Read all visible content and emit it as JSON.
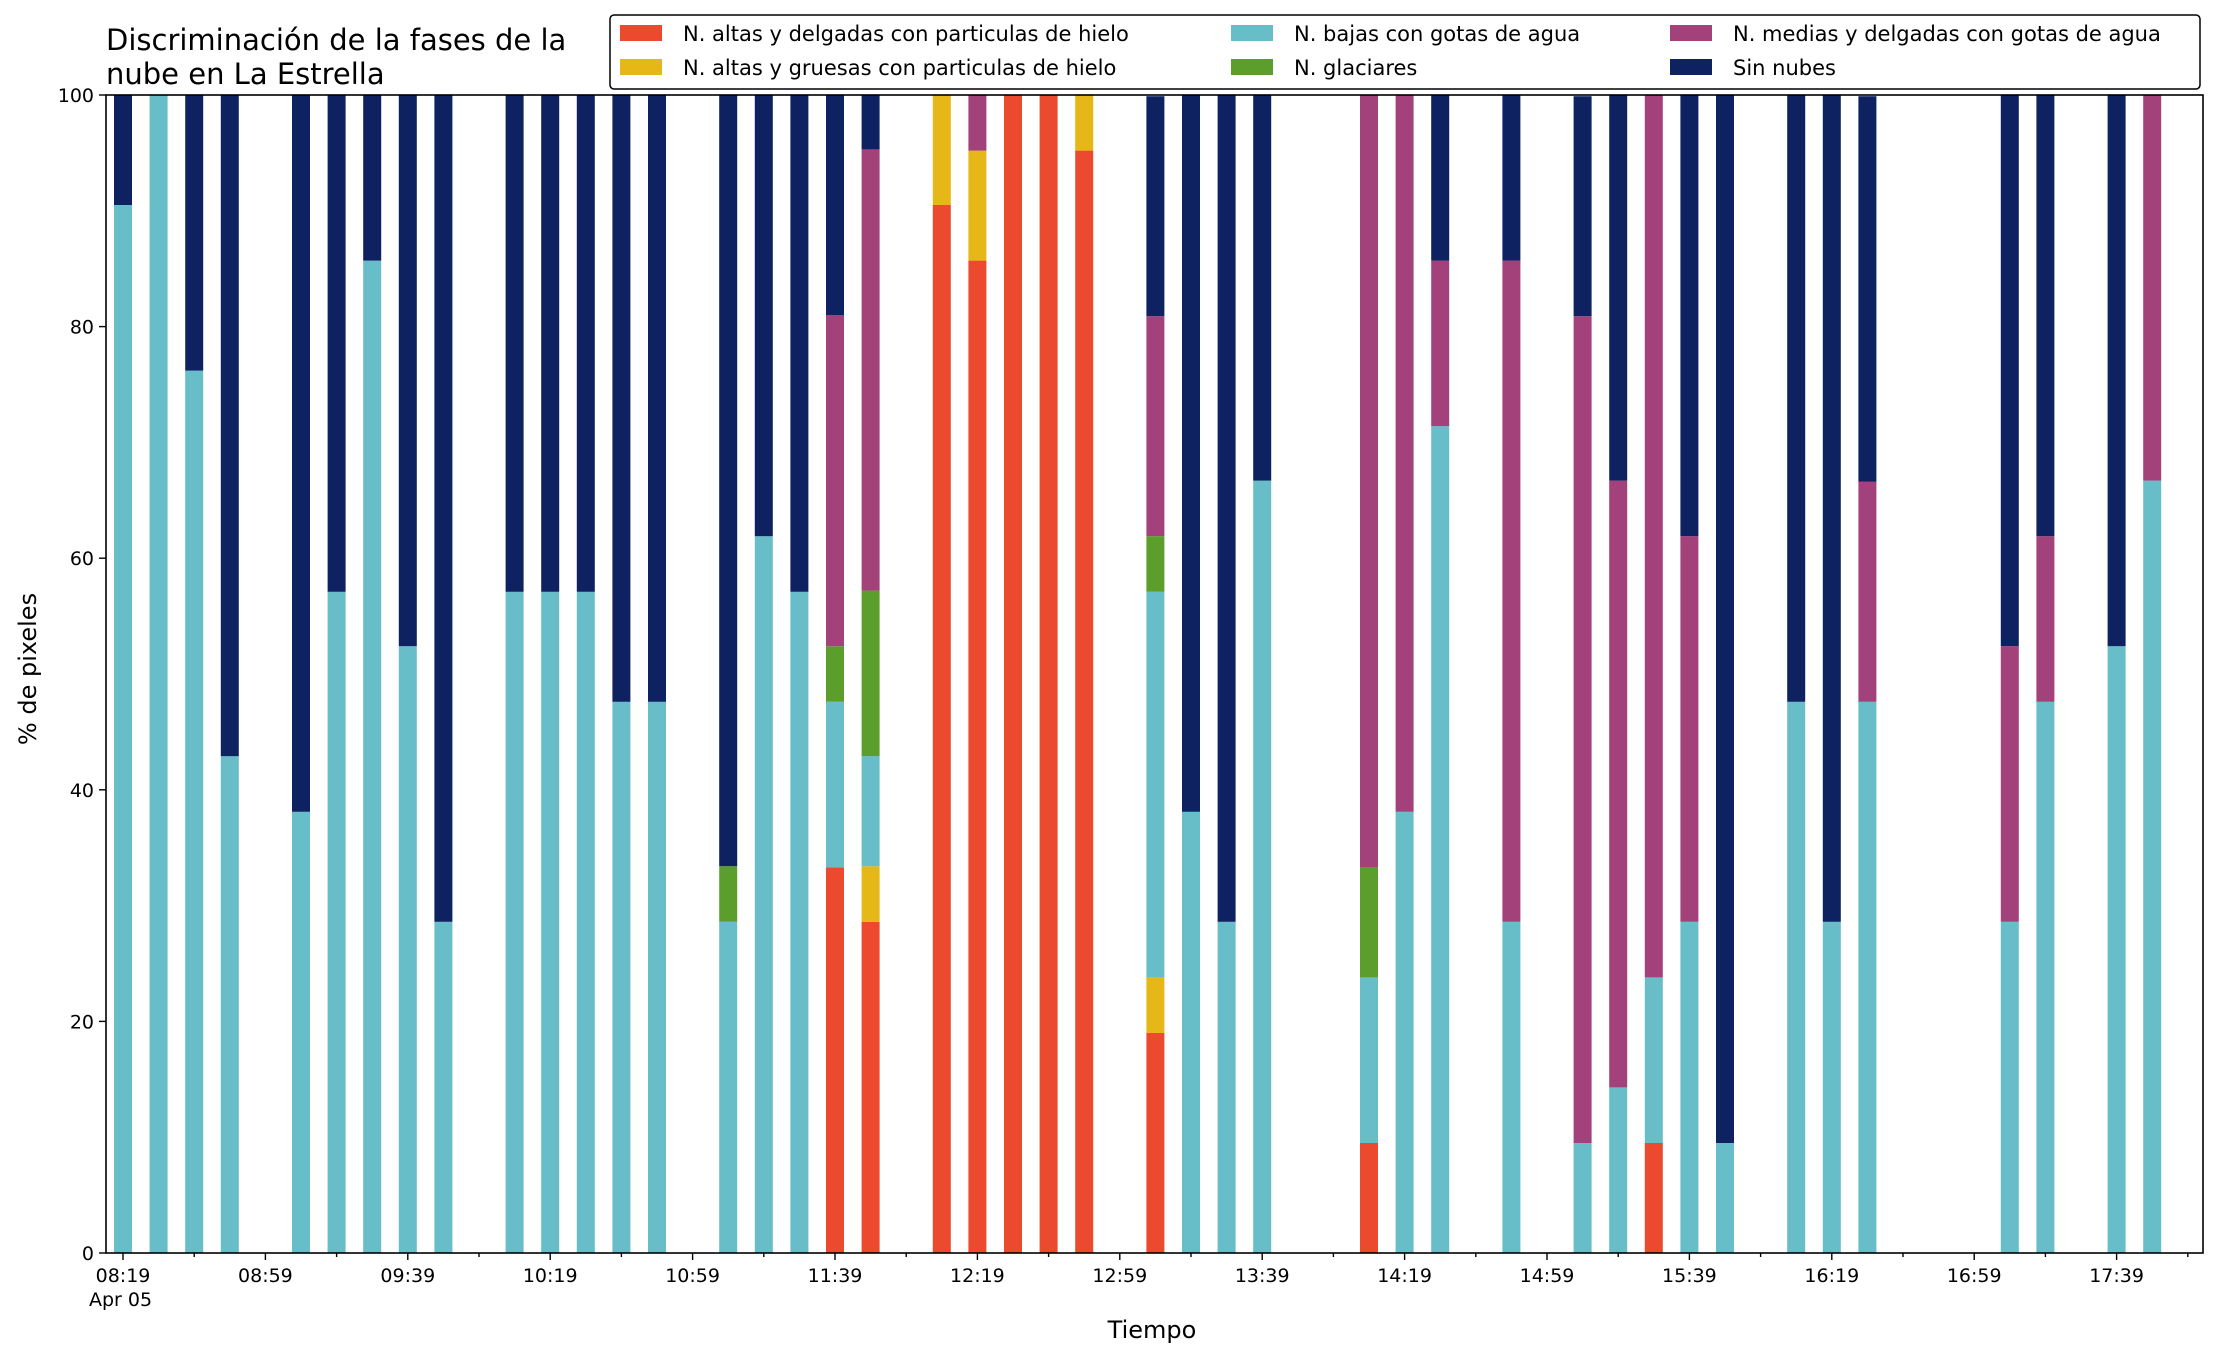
{
  "chart_data": {
    "type": "bar",
    "stacked": true,
    "title": "Discriminación de la fases de la\nnube en La Estrella",
    "xlabel": "Tiempo",
    "ylabel": "% de pixeles",
    "ylim": [
      0,
      100
    ],
    "yticks": [
      0,
      20,
      40,
      60,
      80,
      100
    ],
    "x_tick_labels": [
      "08:19",
      "08:59",
      "09:39",
      "10:19",
      "10:59",
      "11:39",
      "12:19",
      "12:59",
      "13:39",
      "14:19",
      "14:59",
      "15:39",
      "16:19",
      "16:59",
      "17:39"
    ],
    "x_date_label": "Apr 05",
    "grid": false,
    "legend_position": "top-right",
    "times": [
      "08:19",
      "08:29",
      "08:39",
      "08:49",
      "08:59",
      "09:09",
      "09:19",
      "09:29",
      "09:39",
      "09:49",
      "09:59",
      "10:09",
      "10:19",
      "10:29",
      "10:39",
      "10:49",
      "10:59",
      "11:09",
      "11:19",
      "11:29",
      "11:39",
      "11:49",
      "11:59",
      "12:09",
      "12:19",
      "12:29",
      "12:39",
      "12:49",
      "12:59",
      "13:09",
      "13:19",
      "13:29",
      "13:39",
      "13:49",
      "13:59",
      "14:09",
      "14:19",
      "14:29",
      "14:39",
      "14:49",
      "14:59",
      "15:09",
      "15:19",
      "15:29",
      "15:39",
      "15:49",
      "15:59",
      "16:09",
      "16:19",
      "16:29",
      "16:39",
      "16:49",
      "16:59",
      "17:09",
      "17:19",
      "17:29",
      "17:39",
      "17:49"
    ],
    "series": [
      {
        "name": "N. altas y delgadas con particulas de hielo",
        "color": "#eb4a2e",
        "values": [
          0,
          0,
          0,
          0,
          null,
          0,
          0,
          0,
          0,
          0,
          null,
          0,
          0,
          0,
          0,
          0,
          null,
          0,
          0,
          0,
          33.3,
          28.6,
          null,
          90.5,
          85.7,
          100,
          100,
          95.2,
          null,
          19.0,
          0,
          0,
          0,
          null,
          null,
          9.5,
          0,
          0,
          null,
          0,
          null,
          0,
          0,
          9.5,
          0,
          0,
          null,
          0,
          0,
          0,
          null,
          null,
          null,
          0,
          0,
          null,
          0,
          0
        ]
      },
      {
        "name": "N. altas y gruesas con particulas de hielo",
        "color": "#e5b717",
        "values": [
          0,
          0,
          0,
          0,
          null,
          0,
          0,
          0,
          0,
          0,
          null,
          0,
          0,
          0,
          0,
          0,
          null,
          0,
          0,
          0,
          0,
          4.8,
          null,
          9.5,
          9.5,
          0,
          0,
          4.8,
          null,
          4.8,
          0,
          0,
          0,
          null,
          null,
          0,
          0,
          0,
          null,
          0,
          null,
          0,
          0,
          0,
          0,
          0,
          null,
          0,
          0,
          0,
          null,
          null,
          null,
          0,
          0,
          null,
          0,
          0
        ]
      },
      {
        "name": "N. bajas con gotas de agua",
        "color": "#67bdc8",
        "values": [
          90.5,
          100,
          76.2,
          42.9,
          null,
          38.1,
          57.1,
          85.7,
          52.4,
          28.6,
          null,
          57.1,
          57.1,
          57.1,
          47.6,
          47.6,
          null,
          28.6,
          61.9,
          57.1,
          14.3,
          9.5,
          null,
          0,
          0,
          0,
          0,
          0,
          null,
          33.3,
          38.1,
          28.6,
          66.7,
          null,
          null,
          14.3,
          38.1,
          71.4,
          null,
          28.6,
          null,
          9.5,
          14.3,
          14.3,
          28.6,
          9.5,
          null,
          47.6,
          28.6,
          47.6,
          null,
          null,
          null,
          28.6,
          47.6,
          null,
          52.4,
          66.7
        ]
      },
      {
        "name": "N. glaciares",
        "color": "#5b9e2c",
        "values": [
          0,
          0,
          0,
          0,
          null,
          0,
          0,
          0,
          0,
          0,
          null,
          0,
          0,
          0,
          0,
          0,
          null,
          4.8,
          0,
          0,
          4.8,
          14.3,
          null,
          0,
          0,
          0,
          0,
          0,
          null,
          4.8,
          0,
          0,
          0,
          null,
          null,
          9.5,
          0,
          0,
          null,
          0,
          null,
          0,
          0,
          0,
          0,
          0,
          null,
          0,
          0,
          0,
          null,
          null,
          null,
          0,
          0,
          null,
          0,
          0
        ]
      },
      {
        "name": "N. medias y delgadas con gotas de agua",
        "color": "#a3427a",
        "values": [
          0,
          0,
          0,
          0,
          null,
          0,
          0,
          0,
          0,
          0,
          null,
          0,
          0,
          0,
          0,
          0,
          null,
          0,
          0,
          0,
          28.6,
          38.1,
          null,
          0,
          4.8,
          0,
          0,
          0,
          null,
          19.0,
          0,
          0,
          0,
          null,
          null,
          66.7,
          61.9,
          14.3,
          null,
          57.1,
          null,
          71.4,
          52.4,
          76.2,
          33.3,
          0,
          null,
          0,
          0,
          19.0,
          null,
          null,
          null,
          23.8,
          14.3,
          null,
          0,
          33.3
        ]
      },
      {
        "name": "Sin nubes",
        "color": "#0e2261",
        "values": [
          9.5,
          0,
          23.8,
          57.1,
          null,
          61.9,
          42.9,
          14.3,
          47.6,
          71.4,
          null,
          42.9,
          42.9,
          42.9,
          52.4,
          52.4,
          null,
          66.7,
          38.1,
          42.9,
          19.0,
          4.8,
          null,
          0,
          0,
          0,
          0,
          0,
          null,
          19.0,
          61.9,
          71.4,
          33.3,
          null,
          null,
          0,
          0,
          14.3,
          null,
          14.3,
          null,
          19.0,
          33.3,
          0,
          38.1,
          90.5,
          null,
          52.4,
          71.4,
          33.3,
          null,
          null,
          null,
          47.6,
          38.1,
          null,
          47.6,
          0
        ]
      }
    ]
  }
}
